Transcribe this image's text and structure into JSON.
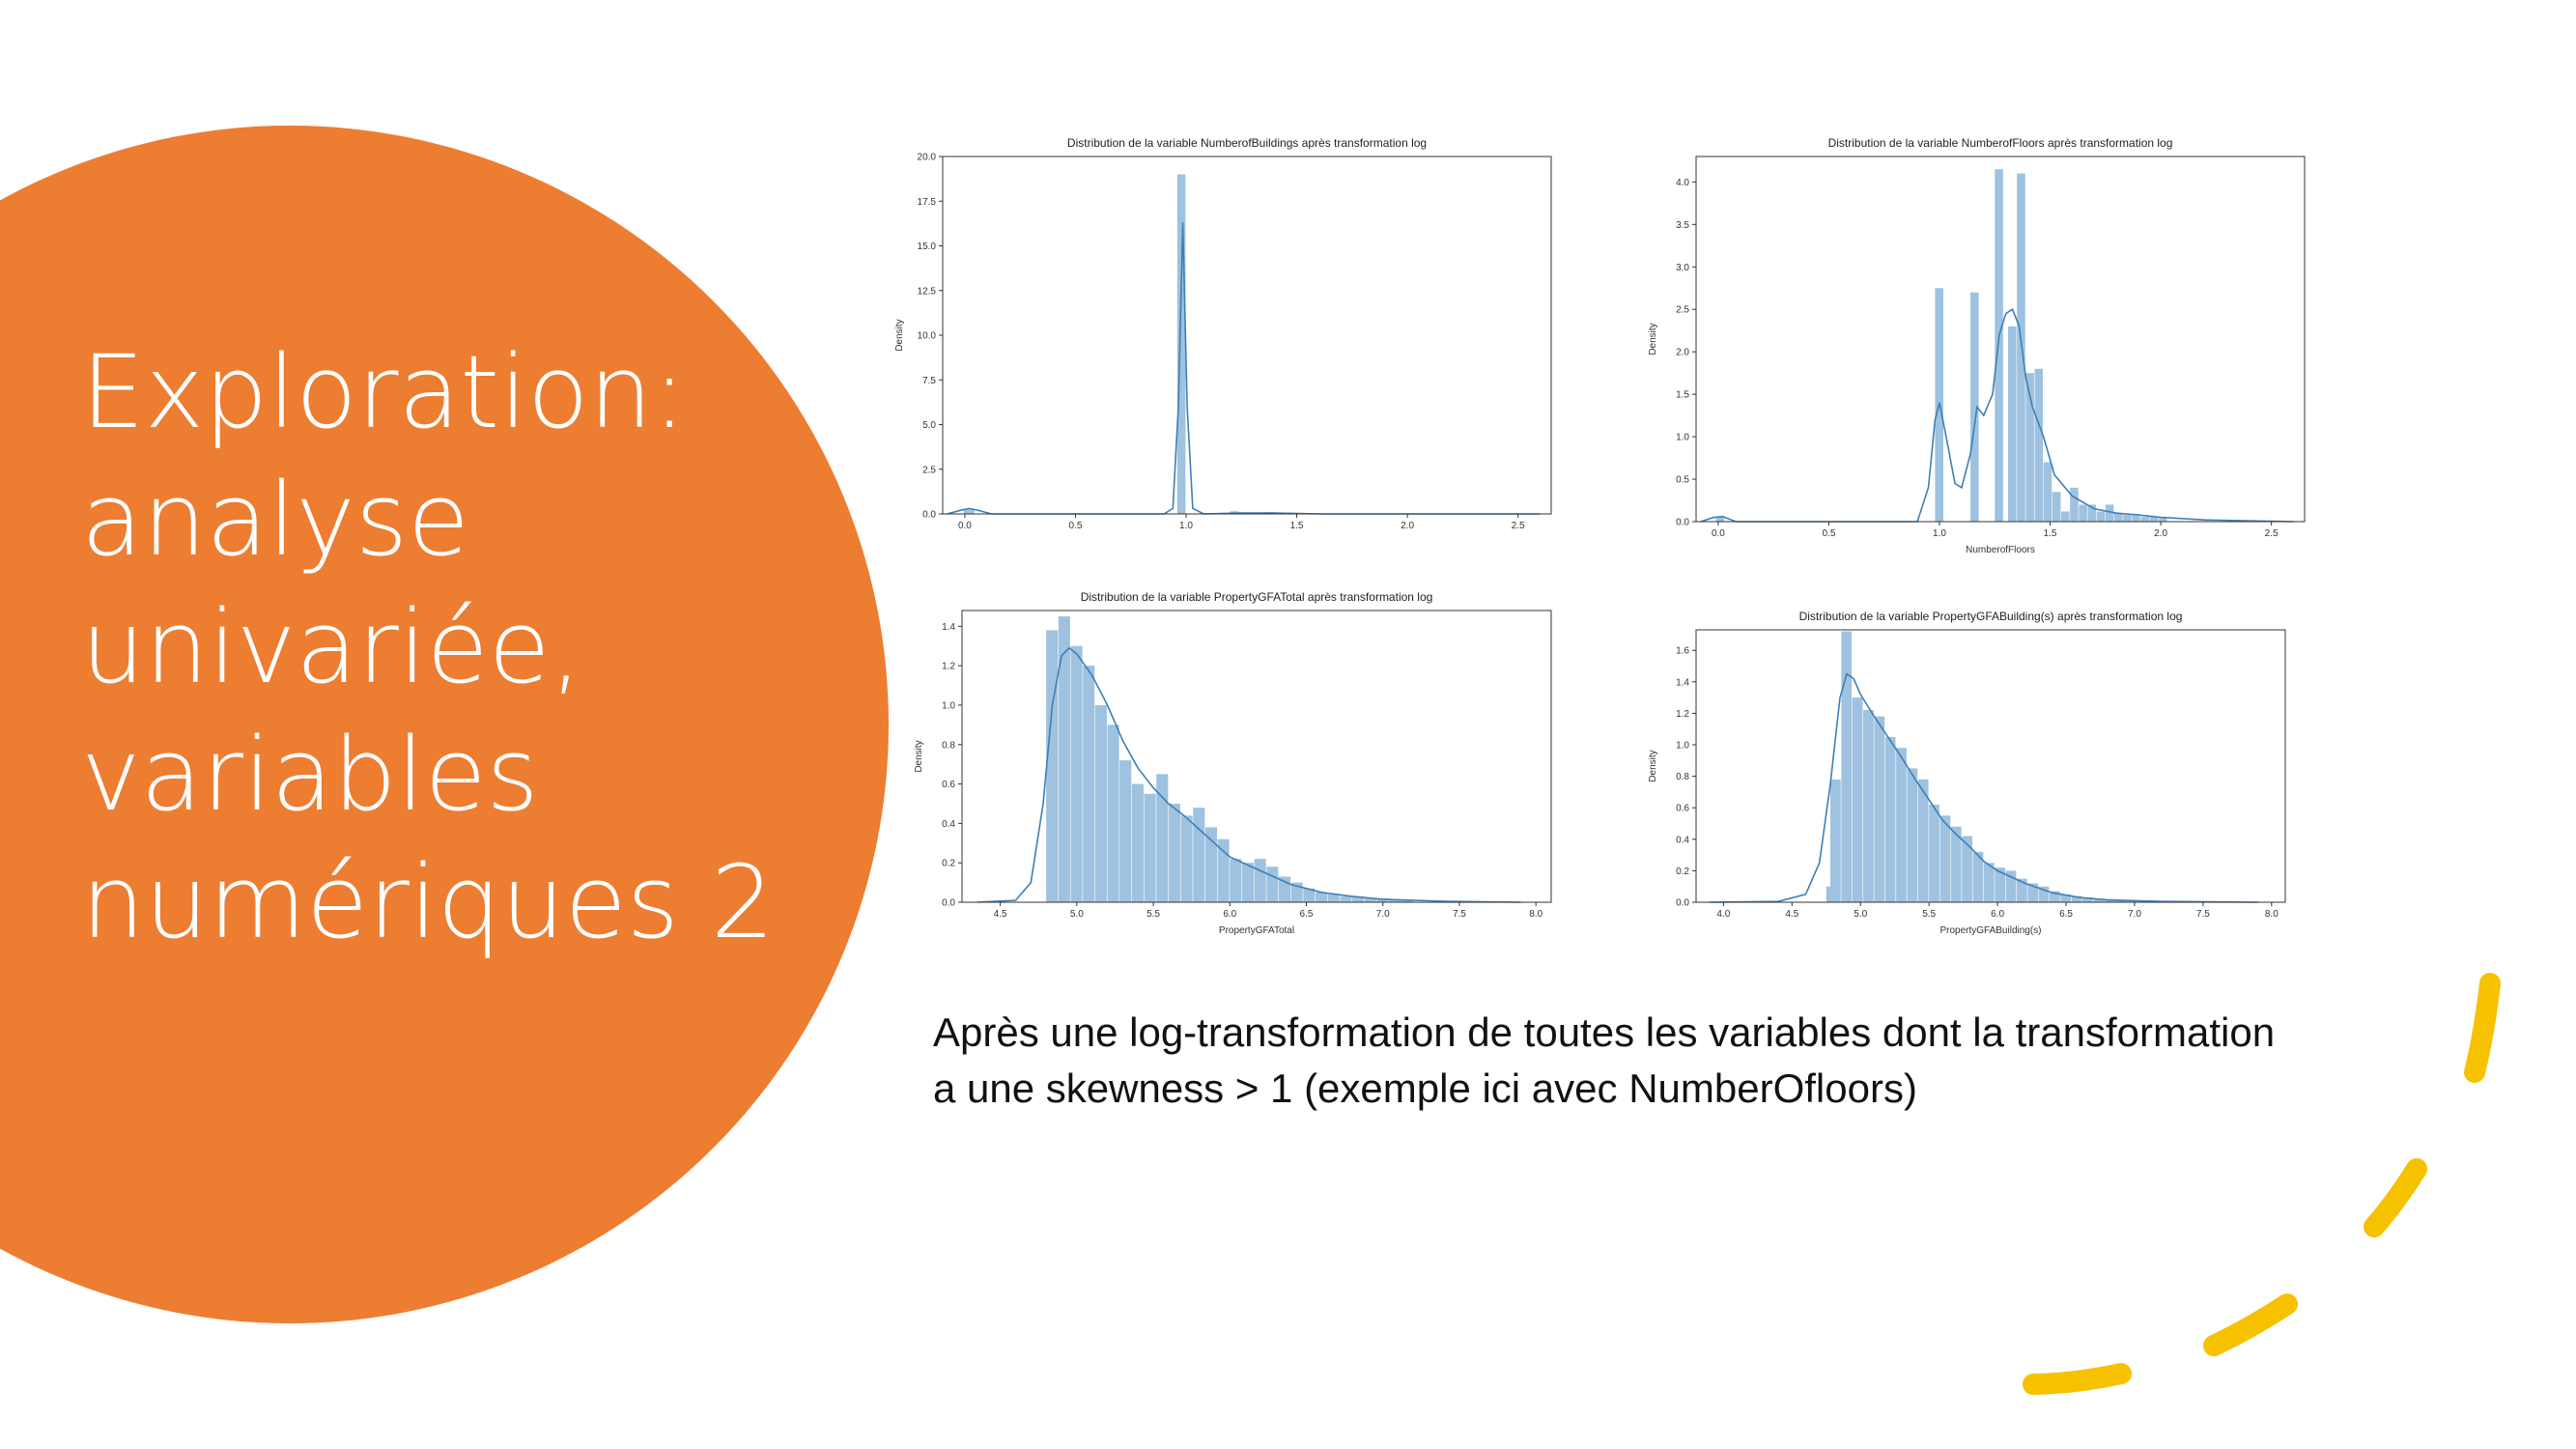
{
  "slide": {
    "title_lines": [
      "Exploration:",
      "analyse",
      "univariée,",
      "variables",
      "numériques 2"
    ],
    "caption_lines": [
      "Après une log-transformation de toutes les variables dont la transformation",
      "a une skewness > 1 (exemple ici avec NumberOfloors)"
    ]
  },
  "colors": {
    "accent_orange": "#ED7D31",
    "dash_yellow": "#F6C200",
    "bar_fill": "#9EC2DF",
    "kde_line": "#3F7FB5"
  },
  "chart_data": [
    {
      "type": "bar",
      "title": "Distribution de la variable NumberofBuildings après transformation log",
      "xlabel": "",
      "ylabel": "Density",
      "xlim": [
        -0.1,
        2.65
      ],
      "ylim": [
        0,
        20
      ],
      "xticks": [
        0.0,
        0.5,
        1.0,
        1.5,
        2.0,
        2.5
      ],
      "xtick_labels": [
        "0.0",
        "0.5",
        "1.0",
        "1.5",
        "2.0",
        "2.5"
      ],
      "yticks": [
        0,
        2.5,
        5,
        7.5,
        10,
        12.5,
        15,
        17.5,
        20
      ],
      "ytick_labels": [
        "0.0",
        "2.5",
        "5.0",
        "7.5",
        "10.0",
        "12.5",
        "15.0",
        "17.5",
        "20.0"
      ],
      "bars": [
        {
          "x0": -0.005,
          "x1": 0.045,
          "h": 0.3
        },
        {
          "x0": 0.96,
          "x1": 1.0,
          "h": 19.0
        },
        {
          "x0": 1.2,
          "x1": 1.24,
          "h": 0.15
        },
        {
          "x0": 1.36,
          "x1": 1.4,
          "h": 0.1
        }
      ],
      "kde": [
        [
          -0.08,
          0.0
        ],
        [
          -0.02,
          0.2
        ],
        [
          0.02,
          0.3
        ],
        [
          0.06,
          0.2
        ],
        [
          0.12,
          0.0
        ],
        [
          0.9,
          0.0
        ],
        [
          0.94,
          0.3
        ],
        [
          0.965,
          6.0
        ],
        [
          0.985,
          16.3
        ],
        [
          1.005,
          6.0
        ],
        [
          1.03,
          0.3
        ],
        [
          1.08,
          0.0
        ],
        [
          1.25,
          0.05
        ],
        [
          1.4,
          0.05
        ],
        [
          1.6,
          0.0
        ],
        [
          2.6,
          0.0
        ]
      ]
    },
    {
      "type": "bar",
      "title": "Distribution de la variable NumberofFloors après transformation log",
      "xlabel": "NumberofFloors",
      "ylabel": "Density",
      "xlim": [
        -0.1,
        2.65
      ],
      "ylim": [
        0,
        4.3
      ],
      "xticks": [
        0.0,
        0.5,
        1.0,
        1.5,
        2.0,
        2.5
      ],
      "xtick_labels": [
        "0.0",
        "0.5",
        "1.0",
        "1.5",
        "2.0",
        "2.5"
      ],
      "yticks": [
        0,
        0.5,
        1,
        1.5,
        2,
        2.5,
        3,
        3.5,
        4
      ],
      "ytick_labels": [
        "0.0",
        "0.5",
        "1.0",
        "1.5",
        "2.0",
        "2.5",
        "3.0",
        "3.5",
        "4.0"
      ],
      "bars": [
        {
          "x0": -0.01,
          "x1": 0.03,
          "h": 0.05
        },
        {
          "x0": 0.98,
          "x1": 1.02,
          "h": 2.75
        },
        {
          "x0": 1.14,
          "x1": 1.18,
          "h": 2.7
        },
        {
          "x0": 1.25,
          "x1": 1.29,
          "h": 4.15
        },
        {
          "x0": 1.31,
          "x1": 1.35,
          "h": 2.3
        },
        {
          "x0": 1.35,
          "x1": 1.39,
          "h": 4.1
        },
        {
          "x0": 1.39,
          "x1": 1.43,
          "h": 1.75
        },
        {
          "x0": 1.43,
          "x1": 1.47,
          "h": 1.8
        },
        {
          "x0": 1.47,
          "x1": 1.51,
          "h": 0.7
        },
        {
          "x0": 1.51,
          "x1": 1.55,
          "h": 0.35
        },
        {
          "x0": 1.55,
          "x1": 1.59,
          "h": 0.12
        },
        {
          "x0": 1.59,
          "x1": 1.63,
          "h": 0.4
        },
        {
          "x0": 1.63,
          "x1": 1.67,
          "h": 0.2
        },
        {
          "x0": 1.67,
          "x1": 1.71,
          "h": 0.2
        },
        {
          "x0": 1.71,
          "x1": 1.75,
          "h": 0.12
        },
        {
          "x0": 1.75,
          "x1": 1.79,
          "h": 0.2
        },
        {
          "x0": 1.79,
          "x1": 1.83,
          "h": 0.1
        },
        {
          "x0": 1.83,
          "x1": 1.87,
          "h": 0.08
        },
        {
          "x0": 1.87,
          "x1": 1.91,
          "h": 0.08
        },
        {
          "x0": 1.91,
          "x1": 1.95,
          "h": 0.06
        },
        {
          "x0": 1.95,
          "x1": 1.99,
          "h": 0.06
        },
        {
          "x0": 1.99,
          "x1": 2.03,
          "h": 0.04
        }
      ],
      "kde": [
        [
          -0.08,
          0.0
        ],
        [
          -0.02,
          0.05
        ],
        [
          0.02,
          0.06
        ],
        [
          0.08,
          0.0
        ],
        [
          0.9,
          0.0
        ],
        [
          0.95,
          0.4
        ],
        [
          0.98,
          1.2
        ],
        [
          1.0,
          1.4
        ],
        [
          1.03,
          1.0
        ],
        [
          1.07,
          0.45
        ],
        [
          1.1,
          0.4
        ],
        [
          1.14,
          0.8
        ],
        [
          1.17,
          1.35
        ],
        [
          1.2,
          1.25
        ],
        [
          1.24,
          1.5
        ],
        [
          1.27,
          2.2
        ],
        [
          1.3,
          2.45
        ],
        [
          1.33,
          2.5
        ],
        [
          1.36,
          2.3
        ],
        [
          1.39,
          1.7
        ],
        [
          1.42,
          1.35
        ],
        [
          1.47,
          1.0
        ],
        [
          1.52,
          0.55
        ],
        [
          1.6,
          0.3
        ],
        [
          1.7,
          0.15
        ],
        [
          1.8,
          0.1
        ],
        [
          1.9,
          0.08
        ],
        [
          2.0,
          0.05
        ],
        [
          2.2,
          0.02
        ],
        [
          2.6,
          0.0
        ]
      ]
    },
    {
      "type": "bar",
      "title": "Distribution de la variable PropertyGFATotal après transformation log",
      "xlabel": "PropertyGFATotal",
      "ylabel": "Density",
      "xlim": [
        4.25,
        8.1
      ],
      "ylim": [
        0,
        1.48
      ],
      "xticks": [
        4.5,
        5.0,
        5.5,
        6.0,
        6.5,
        7.0,
        7.5,
        8.0
      ],
      "xtick_labels": [
        "4.5",
        "5.0",
        "5.5",
        "6.0",
        "6.5",
        "7.0",
        "7.5",
        "8.0"
      ],
      "yticks": [
        0,
        0.2,
        0.4,
        0.6,
        0.8,
        1.0,
        1.2,
        1.4
      ],
      "ytick_labels": [
        "0.0",
        "0.2",
        "0.4",
        "0.6",
        "0.8",
        "1.0",
        "1.2",
        "1.4"
      ],
      "bars": [
        {
          "x0": 4.8,
          "x1": 4.88,
          "h": 1.38
        },
        {
          "x0": 4.88,
          "x1": 4.96,
          "h": 1.45
        },
        {
          "x0": 4.96,
          "x1": 5.04,
          "h": 1.3
        },
        {
          "x0": 5.04,
          "x1": 5.12,
          "h": 1.2
        },
        {
          "x0": 5.12,
          "x1": 5.2,
          "h": 1.0
        },
        {
          "x0": 5.2,
          "x1": 5.28,
          "h": 0.9
        },
        {
          "x0": 5.28,
          "x1": 5.36,
          "h": 0.72
        },
        {
          "x0": 5.36,
          "x1": 5.44,
          "h": 0.6
        },
        {
          "x0": 5.44,
          "x1": 5.52,
          "h": 0.55
        },
        {
          "x0": 5.52,
          "x1": 5.6,
          "h": 0.65
        },
        {
          "x0": 5.6,
          "x1": 5.68,
          "h": 0.5
        },
        {
          "x0": 5.68,
          "x1": 5.76,
          "h": 0.44
        },
        {
          "x0": 5.76,
          "x1": 5.84,
          "h": 0.48
        },
        {
          "x0": 5.84,
          "x1": 5.92,
          "h": 0.38
        },
        {
          "x0": 5.92,
          "x1": 6.0,
          "h": 0.32
        },
        {
          "x0": 6.0,
          "x1": 6.08,
          "h": 0.22
        },
        {
          "x0": 6.08,
          "x1": 6.16,
          "h": 0.2
        },
        {
          "x0": 6.16,
          "x1": 6.24,
          "h": 0.22
        },
        {
          "x0": 6.24,
          "x1": 6.32,
          "h": 0.18
        },
        {
          "x0": 6.32,
          "x1": 6.4,
          "h": 0.13
        },
        {
          "x0": 6.4,
          "x1": 6.48,
          "h": 0.1
        },
        {
          "x0": 6.48,
          "x1": 6.56,
          "h": 0.07
        },
        {
          "x0": 6.56,
          "x1": 6.64,
          "h": 0.05
        },
        {
          "x0": 6.64,
          "x1": 6.72,
          "h": 0.04
        },
        {
          "x0": 6.72,
          "x1": 6.8,
          "h": 0.03
        },
        {
          "x0": 6.8,
          "x1": 6.88,
          "h": 0.03
        },
        {
          "x0": 6.88,
          "x1": 6.96,
          "h": 0.02
        },
        {
          "x0": 6.96,
          "x1": 7.04,
          "h": 0.02
        },
        {
          "x0": 7.04,
          "x1": 7.12,
          "h": 0.015
        },
        {
          "x0": 7.12,
          "x1": 7.2,
          "h": 0.01
        }
      ],
      "kde": [
        [
          4.35,
          0.0
        ],
        [
          4.6,
          0.01
        ],
        [
          4.7,
          0.1
        ],
        [
          4.78,
          0.5
        ],
        [
          4.84,
          1.0
        ],
        [
          4.9,
          1.25
        ],
        [
          4.95,
          1.29
        ],
        [
          5.0,
          1.26
        ],
        [
          5.1,
          1.15
        ],
        [
          5.2,
          1.0
        ],
        [
          5.3,
          0.82
        ],
        [
          5.4,
          0.68
        ],
        [
          5.5,
          0.58
        ],
        [
          5.6,
          0.5
        ],
        [
          5.7,
          0.44
        ],
        [
          5.8,
          0.37
        ],
        [
          5.9,
          0.3
        ],
        [
          6.0,
          0.23
        ],
        [
          6.2,
          0.16
        ],
        [
          6.4,
          0.09
        ],
        [
          6.6,
          0.05
        ],
        [
          6.8,
          0.03
        ],
        [
          7.0,
          0.015
        ],
        [
          7.4,
          0.005
        ],
        [
          7.9,
          0.0
        ]
      ]
    },
    {
      "type": "bar",
      "title": "Distribution de la variable PropertyGFABuilding(s) après transformation log",
      "xlabel": "PropertyGFABuilding(s)",
      "ylabel": "Density",
      "xlim": [
        3.8,
        8.1
      ],
      "ylim": [
        0,
        1.73
      ],
      "xticks": [
        4.0,
        4.5,
        5.0,
        5.5,
        6.0,
        6.5,
        7.0,
        7.5,
        8.0
      ],
      "xtick_labels": [
        "4.0",
        "4.5",
        "5.0",
        "5.5",
        "6.0",
        "6.5",
        "7.0",
        "7.5",
        "8.0"
      ],
      "yticks": [
        0,
        0.2,
        0.4,
        0.6,
        0.8,
        1.0,
        1.2,
        1.4,
        1.6
      ],
      "ytick_labels": [
        "0.0",
        "0.2",
        "0.4",
        "0.6",
        "0.8",
        "1.0",
        "1.2",
        "1.4",
        "1.6"
      ],
      "bars": [
        {
          "x0": 4.75,
          "x1": 4.83,
          "h": 0.1
        },
        {
          "x0": 4.78,
          "x1": 4.86,
          "h": 0.78
        },
        {
          "x0": 4.86,
          "x1": 4.94,
          "h": 1.72
        },
        {
          "x0": 4.94,
          "x1": 5.02,
          "h": 1.3
        },
        {
          "x0": 5.02,
          "x1": 5.1,
          "h": 1.22
        },
        {
          "x0": 5.1,
          "x1": 5.18,
          "h": 1.18
        },
        {
          "x0": 5.18,
          "x1": 5.26,
          "h": 1.05
        },
        {
          "x0": 5.26,
          "x1": 5.34,
          "h": 0.98
        },
        {
          "x0": 5.34,
          "x1": 5.42,
          "h": 0.85
        },
        {
          "x0": 5.42,
          "x1": 5.5,
          "h": 0.78
        },
        {
          "x0": 5.5,
          "x1": 5.58,
          "h": 0.62
        },
        {
          "x0": 5.58,
          "x1": 5.66,
          "h": 0.55
        },
        {
          "x0": 5.66,
          "x1": 5.74,
          "h": 0.48
        },
        {
          "x0": 5.74,
          "x1": 5.82,
          "h": 0.42
        },
        {
          "x0": 5.82,
          "x1": 5.9,
          "h": 0.32
        },
        {
          "x0": 5.9,
          "x1": 5.98,
          "h": 0.25
        },
        {
          "x0": 5.98,
          "x1": 6.06,
          "h": 0.22
        },
        {
          "x0": 6.06,
          "x1": 6.14,
          "h": 0.2
        },
        {
          "x0": 6.14,
          "x1": 6.22,
          "h": 0.15
        },
        {
          "x0": 6.22,
          "x1": 6.3,
          "h": 0.12
        },
        {
          "x0": 6.3,
          "x1": 6.38,
          "h": 0.1
        },
        {
          "x0": 6.38,
          "x1": 6.46,
          "h": 0.07
        },
        {
          "x0": 6.46,
          "x1": 6.54,
          "h": 0.05
        },
        {
          "x0": 6.54,
          "x1": 6.62,
          "h": 0.04
        },
        {
          "x0": 6.62,
          "x1": 6.7,
          "h": 0.03
        },
        {
          "x0": 6.7,
          "x1": 6.78,
          "h": 0.02
        },
        {
          "x0": 6.78,
          "x1": 6.86,
          "h": 0.02
        },
        {
          "x0": 6.86,
          "x1": 6.94,
          "h": 0.015
        },
        {
          "x0": 6.94,
          "x1": 7.02,
          "h": 0.01
        }
      ],
      "kde": [
        [
          3.9,
          0.0
        ],
        [
          4.4,
          0.005
        ],
        [
          4.6,
          0.05
        ],
        [
          4.7,
          0.25
        ],
        [
          4.78,
          0.75
        ],
        [
          4.85,
          1.3
        ],
        [
          4.9,
          1.45
        ],
        [
          4.95,
          1.42
        ],
        [
          5.0,
          1.32
        ],
        [
          5.1,
          1.18
        ],
        [
          5.2,
          1.05
        ],
        [
          5.3,
          0.92
        ],
        [
          5.4,
          0.78
        ],
        [
          5.5,
          0.65
        ],
        [
          5.6,
          0.52
        ],
        [
          5.7,
          0.43
        ],
        [
          5.8,
          0.35
        ],
        [
          5.9,
          0.26
        ],
        [
          6.0,
          0.2
        ],
        [
          6.2,
          0.12
        ],
        [
          6.4,
          0.06
        ],
        [
          6.6,
          0.03
        ],
        [
          6.8,
          0.015
        ],
        [
          7.2,
          0.005
        ],
        [
          7.9,
          0.0
        ]
      ]
    }
  ]
}
